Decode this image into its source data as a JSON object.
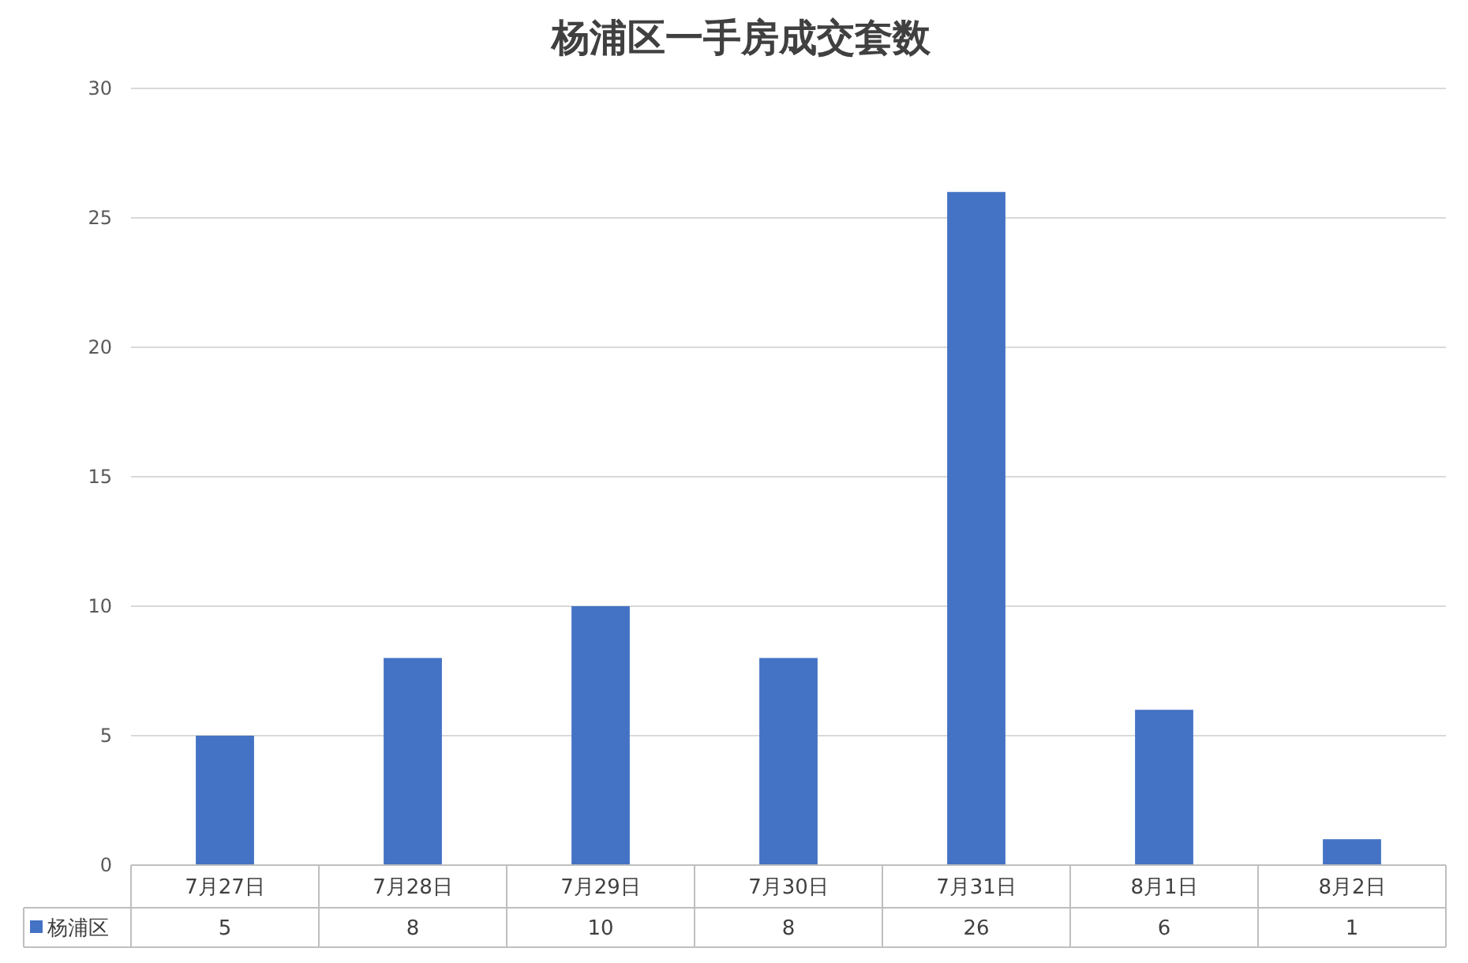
{
  "chart_data": {
    "type": "bar",
    "title": "杨浦区一手房成交套数",
    "categories": [
      "7月27日",
      "7月28日",
      "7月29日",
      "7月30日",
      "7月31日",
      "8月1日",
      "8月2日"
    ],
    "series": [
      {
        "name": "杨浦区",
        "color": "#4472c4",
        "values": [
          5,
          8,
          10,
          8,
          26,
          6,
          1
        ]
      }
    ],
    "ylim": [
      0,
      30
    ],
    "yticks": [
      0,
      5,
      10,
      15,
      20,
      25,
      30
    ],
    "grid": "y",
    "data_labels": true
  }
}
